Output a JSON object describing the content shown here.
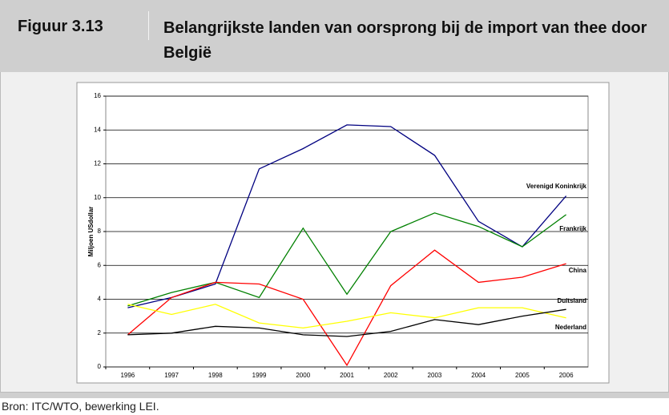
{
  "header": {
    "figure": "Figuur 3.13",
    "title": "Belangrijkste landen van oorsprong bij de import van thee door België"
  },
  "chart_data": {
    "type": "line",
    "ylabel": "Miljoen USdollar",
    "categories": [
      "1996",
      "1997",
      "1998",
      "1999",
      "2000",
      "2001",
      "2002",
      "2003",
      "2004",
      "2005",
      "2006"
    ],
    "series": [
      {
        "name": "Verenigd Koninkrijk",
        "color": "#000080",
        "values": [
          3.5,
          4.1,
          4.9,
          11.7,
          12.9,
          14.3,
          14.2,
          12.5,
          8.6,
          7.1,
          10.1
        ]
      },
      {
        "name": "Frankrijk",
        "color": "#008000",
        "values": [
          3.6,
          4.4,
          5.0,
          4.1,
          8.2,
          4.3,
          8.0,
          9.1,
          8.3,
          7.1,
          9.0
        ]
      },
      {
        "name": "China",
        "color": "#ff0000",
        "values": [
          1.9,
          4.1,
          5.0,
          4.9,
          4.0,
          0.1,
          4.8,
          6.9,
          5.0,
          5.3,
          6.1
        ]
      },
      {
        "name": "Duitsland",
        "color": "#ffff00",
        "values": [
          3.7,
          3.1,
          3.7,
          2.6,
          2.3,
          2.7,
          3.2,
          2.9,
          3.5,
          3.5,
          2.9
        ]
      },
      {
        "name": "Nederland",
        "color": "#000000",
        "values": [
          1.9,
          2.0,
          2.4,
          2.3,
          1.9,
          1.8,
          2.1,
          2.8,
          2.5,
          3.0,
          3.4
        ]
      }
    ],
    "ylim": [
      0,
      16
    ],
    "yticks": [
      0,
      2,
      4,
      6,
      8,
      10,
      12,
      14,
      16
    ],
    "grid": true
  },
  "source": "Bron: ITC/WTO, bewerking LEI."
}
